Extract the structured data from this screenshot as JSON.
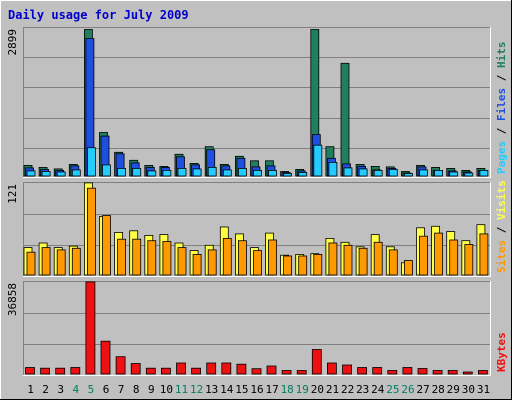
{
  "chart_data": {
    "type": "bar",
    "title": "Daily usage for July 2009",
    "categories": [
      "1",
      "2",
      "3",
      "4",
      "5",
      "6",
      "7",
      "8",
      "9",
      "10",
      "11",
      "12",
      "13",
      "14",
      "15",
      "16",
      "17",
      "18",
      "19",
      "20",
      "21",
      "22",
      "23",
      "24",
      "25",
      "26",
      "27",
      "28",
      "29",
      "30",
      "31"
    ],
    "weekend_days": [
      "4",
      "5",
      "11",
      "12",
      "18",
      "19",
      "25",
      "26"
    ],
    "panels": [
      {
        "id": "hits-files-pages",
        "ymax_label": "2899",
        "ylim": [
          0,
          2899
        ],
        "axis_labels": [
          "Pages",
          "Files",
          "Hits"
        ],
        "series": [
          {
            "name": "Hits",
            "color": "#1f7f5f",
            "values": [
              210,
              170,
              140,
              230,
              2899,
              860,
              470,
              310,
              210,
              190,
              430,
              250,
              580,
              230,
              390,
              300,
              300,
              90,
              130,
              2899,
              580,
              2230,
              230,
              190,
              180,
              90,
              210,
              170,
              150,
              110,
              150
            ]
          },
          {
            "name": "Files",
            "color": "#1f4fe0",
            "values": [
              160,
              130,
              110,
              200,
              2720,
              790,
              440,
              260,
              170,
              170,
              380,
              220,
              520,
              200,
              350,
              180,
              200,
              70,
              100,
              820,
              350,
              240,
              190,
              120,
              150,
              60,
              180,
              110,
              100,
              80,
              110
            ]
          },
          {
            "name": "Pages",
            "color": "#22ccff",
            "values": [
              100,
              90,
              80,
              120,
              560,
              220,
              150,
              150,
              100,
              110,
              150,
              140,
              170,
              120,
              150,
              110,
              110,
              50,
              70,
              610,
              270,
              160,
              140,
              110,
              130,
              50,
              120,
              110,
              80,
              60,
              110
            ]
          }
        ]
      },
      {
        "id": "visits-sites",
        "ymax_label": "121",
        "ylim": [
          0,
          121
        ],
        "axis_labels": [
          "Sites",
          "Visits"
        ],
        "series": [
          {
            "name": "Visits",
            "color": "#ffff44",
            "values": [
              36,
              42,
              36,
              38,
              121,
              77,
              56,
              58,
              52,
              53,
              42,
              32,
              39,
              63,
              54,
              36,
              55,
              26,
              27,
              28,
              48,
              43,
              37,
              53,
              37,
              16,
              62,
              64,
              57,
              45,
              66
            ]
          },
          {
            "name": "Sites",
            "color": "#ff9900",
            "values": [
              30,
              36,
              33,
              35,
              114,
              78,
              47,
              47,
              45,
              44,
              36,
              27,
              33,
              48,
              45,
              32,
              46,
              25,
              25,
              27,
              42,
              39,
              35,
              43,
              33,
              19,
              51,
              55,
              46,
              40,
              54
            ]
          }
        ]
      },
      {
        "id": "kbytes",
        "ymax_label": "36858",
        "ylim": [
          0,
          36858
        ],
        "axis_labels": [
          "KBytes"
        ],
        "series": [
          {
            "name": "KBytes",
            "color": "#ee1111",
            "values": [
              2600,
              2300,
              2300,
              2600,
              36858,
              13100,
              6900,
              4200,
              2300,
              2300,
              4400,
              2300,
              4400,
              4400,
              3900,
              2100,
              3200,
              1400,
              1400,
              9800,
              4400,
              3600,
              2600,
              2600,
              1400,
              2600,
              2200,
              1400,
              1400,
              700,
              1400
            ]
          }
        ]
      }
    ]
  }
}
